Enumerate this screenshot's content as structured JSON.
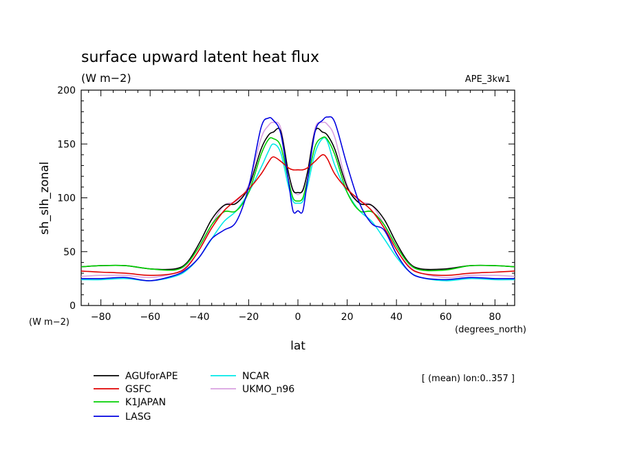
{
  "chart_data": {
    "type": "line",
    "title": "surface upward latent heat flux",
    "units": "(W m−2)",
    "experiment": "APE_3kw1",
    "xlabel": "lat",
    "xunits": "(degrees_north)",
    "ylabel": "sh_slh_zonal",
    "yunits": "(W m−2)",
    "note": "[ (mean) lon:0..357 ]",
    "xlim": [
      -88,
      88
    ],
    "ylim": [
      0,
      200
    ],
    "xticks": [
      -80,
      -60,
      -40,
      -20,
      0,
      20,
      40,
      60,
      80
    ],
    "yticks": [
      0,
      50,
      100,
      150,
      200
    ],
    "x": [
      -88,
      -80,
      -70,
      -60,
      -50,
      -45,
      -40,
      -35,
      -30,
      -25,
      -20,
      -15,
      -12,
      -10,
      -7,
      -4,
      -2,
      0,
      2,
      4,
      7,
      10,
      12,
      15,
      20,
      25,
      30,
      35,
      40,
      45,
      50,
      60,
      70,
      80,
      88
    ],
    "series": [
      {
        "name": "AGUforAPE",
        "color": "#000000",
        "values": [
          36,
          37,
          37,
          34,
          34,
          40,
          58,
          80,
          93,
          95,
          110,
          145,
          158,
          161,
          162,
          125,
          107,
          105,
          107,
          125,
          162,
          161,
          158,
          145,
          110,
          95,
          93,
          80,
          58,
          40,
          34,
          34,
          37,
          37,
          36
        ]
      },
      {
        "name": "GSFC",
        "color": "#e00000",
        "values": [
          32,
          31,
          30,
          28,
          30,
          36,
          52,
          72,
          88,
          98,
          108,
          122,
          133,
          138,
          134,
          128,
          126,
          126,
          126,
          128,
          134,
          140,
          136,
          122,
          108,
          98,
          88,
          72,
          52,
          36,
          30,
          28,
          30,
          31,
          32
        ]
      },
      {
        "name": "K1JAPAN",
        "color": "#00d000",
        "values": [
          36,
          37,
          37,
          34,
          33,
          39,
          55,
          75,
          87,
          88,
          105,
          140,
          154,
          155,
          148,
          118,
          100,
          97,
          100,
          118,
          148,
          156,
          154,
          140,
          105,
          88,
          87,
          75,
          55,
          39,
          33,
          33,
          37,
          37,
          36
        ]
      },
      {
        "name": "LASG",
        "color": "#0000e0",
        "values": [
          25,
          25,
          26,
          23,
          28,
          34,
          45,
          62,
          70,
          78,
          110,
          165,
          174,
          172,
          160,
          118,
          88,
          88,
          88,
          118,
          162,
          172,
          175,
          170,
          130,
          95,
          76,
          70,
          48,
          32,
          26,
          24,
          26,
          25,
          25
        ]
      },
      {
        "name": "NCAR",
        "color": "#00e8e8",
        "values": [
          24,
          24,
          25,
          23,
          27,
          33,
          45,
          62,
          78,
          88,
          105,
          128,
          143,
          150,
          142,
          112,
          97,
          95,
          97,
          112,
          142,
          155,
          152,
          130,
          105,
          88,
          78,
          62,
          45,
          32,
          26,
          23,
          25,
          24,
          24
        ]
      },
      {
        "name": "UKMO_n96",
        "color": "#d8a0e0",
        "values": [
          27,
          28,
          28,
          26,
          30,
          37,
          52,
          75,
          93,
          97,
          112,
          155,
          167,
          170,
          165,
          125,
          108,
          103,
          108,
          125,
          165,
          170,
          168,
          156,
          112,
          97,
          93,
          75,
          52,
          37,
          30,
          26,
          28,
          28,
          27
        ]
      }
    ]
  }
}
